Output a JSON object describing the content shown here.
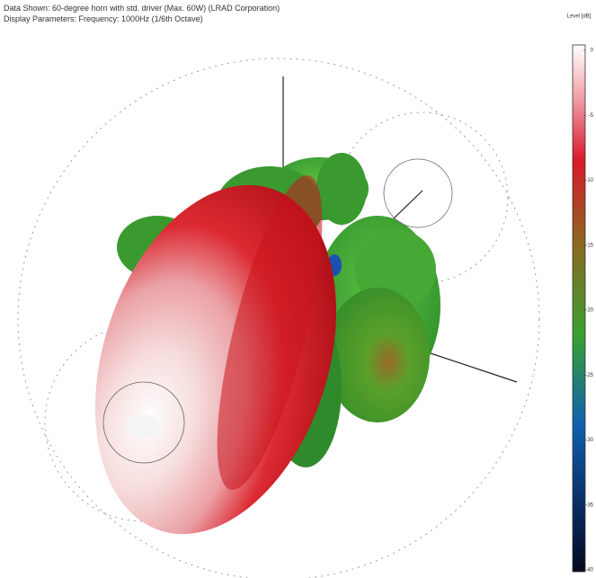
{
  "chart_data": {
    "type": "colorbar",
    "title": "Data Shown:   60-degree horn with std. driver (Max. 60W) (LRAD Corporation)",
    "subtitle": "Display Parameters:   Frequency: 1000Hz (1/6th Octave)",
    "ylabel": "Level [dB]",
    "ylim": [
      -40,
      0
    ],
    "yticks": [
      0,
      -5,
      -10,
      -15,
      -20,
      -25,
      -30,
      -35,
      -40
    ]
  }
}
